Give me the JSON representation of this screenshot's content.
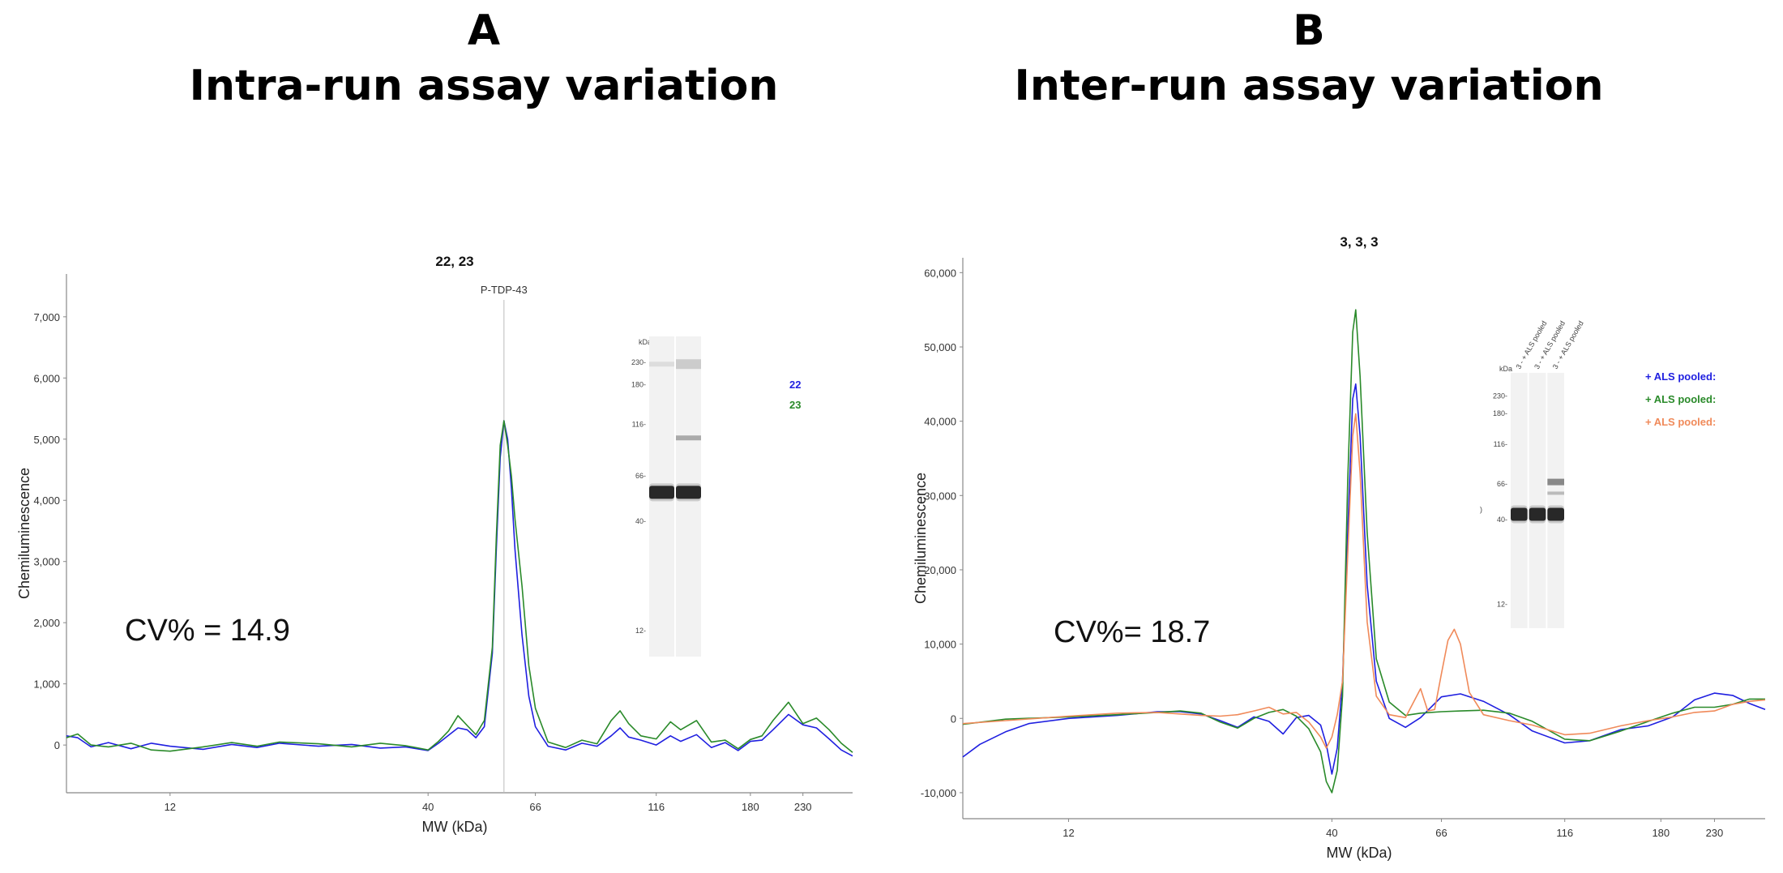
{
  "panels": {
    "a": {
      "letter": "A",
      "title": "Intra-run assay variation"
    },
    "b": {
      "letter": "B",
      "title": "Inter-run assay variation"
    }
  },
  "chart_data": [
    {
      "type": "line",
      "title": "22, 23",
      "xlabel": "MW (kDa)",
      "ylabel": "Chemiluminescence",
      "x_scale": "log",
      "x_ticks": [
        12,
        40,
        66,
        116,
        180,
        230
      ],
      "y_ticks": [
        0,
        1000,
        2000,
        3000,
        4000,
        5000,
        6000,
        7000
      ],
      "y_tick_labels": [
        "0",
        "1,000",
        "2,000",
        "3,000",
        "4,000",
        "5,000",
        "6,000",
        "7,000"
      ],
      "xlim": [
        7.4,
        290
      ],
      "ylim": [
        -780,
        7700
      ],
      "annotation": "P-TDP-43",
      "annotation_x": 57,
      "cv_text": "CV% = 14.9",
      "grid": false,
      "legend_position": "right",
      "series": [
        {
          "name": "22",
          "color": "#1f1fe0",
          "points": [
            [
              7.4,
              150
            ],
            [
              7.8,
              120
            ],
            [
              8.3,
              -30
            ],
            [
              9,
              40
            ],
            [
              10,
              -60
            ],
            [
              11,
              30
            ],
            [
              12,
              -20
            ],
            [
              14,
              -70
            ],
            [
              16,
              10
            ],
            [
              18,
              -40
            ],
            [
              20,
              30
            ],
            [
              24,
              -20
            ],
            [
              28,
              10
            ],
            [
              32,
              -50
            ],
            [
              36,
              -30
            ],
            [
              40,
              -90
            ],
            [
              42,
              30
            ],
            [
              44,
              160
            ],
            [
              46,
              280
            ],
            [
              48,
              250
            ],
            [
              50,
              120
            ],
            [
              52,
              300
            ],
            [
              54,
              1500
            ],
            [
              55,
              3200
            ],
            [
              56,
              4700
            ],
            [
              57,
              5300
            ],
            [
              58,
              5000
            ],
            [
              59,
              4200
            ],
            [
              60,
              3200
            ],
            [
              62,
              1800
            ],
            [
              64,
              800
            ],
            [
              66,
              300
            ],
            [
              70,
              -20
            ],
            [
              76,
              -80
            ],
            [
              82,
              30
            ],
            [
              88,
              -20
            ],
            [
              94,
              150
            ],
            [
              98,
              280
            ],
            [
              102,
              130
            ],
            [
              108,
              80
            ],
            [
              116,
              0
            ],
            [
              124,
              150
            ],
            [
              130,
              60
            ],
            [
              140,
              170
            ],
            [
              150,
              -40
            ],
            [
              160,
              40
            ],
            [
              170,
              -90
            ],
            [
              180,
              60
            ],
            [
              190,
              80
            ],
            [
              200,
              250
            ],
            [
              215,
              500
            ],
            [
              230,
              330
            ],
            [
              245,
              280
            ],
            [
              260,
              100
            ],
            [
              275,
              -80
            ],
            [
              290,
              -180
            ]
          ]
        },
        {
          "name": "23",
          "color": "#2a8a2a",
          "points": [
            [
              7.4,
              120
            ],
            [
              7.8,
              180
            ],
            [
              8.3,
              0
            ],
            [
              9,
              -30
            ],
            [
              10,
              30
            ],
            [
              11,
              -80
            ],
            [
              12,
              -100
            ],
            [
              14,
              -30
            ],
            [
              16,
              40
            ],
            [
              18,
              -20
            ],
            [
              20,
              50
            ],
            [
              24,
              20
            ],
            [
              28,
              -30
            ],
            [
              32,
              30
            ],
            [
              36,
              -10
            ],
            [
              40,
              -80
            ],
            [
              42,
              60
            ],
            [
              44,
              230
            ],
            [
              46,
              480
            ],
            [
              48,
              320
            ],
            [
              50,
              170
            ],
            [
              52,
              400
            ],
            [
              54,
              1600
            ],
            [
              55,
              3400
            ],
            [
              56,
              4900
            ],
            [
              57,
              5300
            ],
            [
              58,
              4900
            ],
            [
              59,
              4400
            ],
            [
              60,
              3700
            ],
            [
              62,
              2600
            ],
            [
              64,
              1300
            ],
            [
              66,
              600
            ],
            [
              70,
              50
            ],
            [
              76,
              -40
            ],
            [
              82,
              80
            ],
            [
              88,
              20
            ],
            [
              94,
              400
            ],
            [
              98,
              560
            ],
            [
              102,
              350
            ],
            [
              108,
              150
            ],
            [
              116,
              100
            ],
            [
              124,
              380
            ],
            [
              130,
              250
            ],
            [
              140,
              400
            ],
            [
              150,
              50
            ],
            [
              160,
              80
            ],
            [
              170,
              -60
            ],
            [
              180,
              90
            ],
            [
              190,
              150
            ],
            [
              200,
              400
            ],
            [
              215,
              700
            ],
            [
              230,
              350
            ],
            [
              245,
              440
            ],
            [
              260,
              250
            ],
            [
              275,
              30
            ],
            [
              290,
              -120
            ]
          ]
        }
      ]
    },
    {
      "type": "line",
      "title": "3, 3, 3",
      "xlabel": "MW (kDa)",
      "ylabel": "Chemiluminescence",
      "x_scale": "log",
      "x_ticks": [
        12,
        40,
        66,
        116,
        180,
        230
      ],
      "y_ticks": [
        -10000,
        0,
        10000,
        20000,
        30000,
        40000,
        50000,
        60000
      ],
      "y_tick_labels": [
        "-10,000",
        "0",
        "10,000",
        "20,000",
        "30,000",
        "40,000",
        "50,000",
        "60,000"
      ],
      "xlim": [
        7.4,
        290
      ],
      "ylim": [
        -13500,
        62000
      ],
      "cv_text": "CV%= 18.7",
      "grid": false,
      "legend_position": "right",
      "series": [
        {
          "name": "+ ALS pooled:",
          "color": "#1f1fe0",
          "points": [
            [
              7.4,
              -5200
            ],
            [
              8,
              -3500
            ],
            [
              9,
              -1800
            ],
            [
              10,
              -700
            ],
            [
              12,
              0
            ],
            [
              15,
              400
            ],
            [
              18,
              900
            ],
            [
              20,
              900
            ],
            [
              22,
              600
            ],
            [
              24,
              -300
            ],
            [
              26,
              -1200
            ],
            [
              28,
              200
            ],
            [
              30,
              -400
            ],
            [
              32,
              -2100
            ],
            [
              34,
              100
            ],
            [
              36,
              400
            ],
            [
              38,
              -900
            ],
            [
              39,
              -3500
            ],
            [
              40,
              -7500
            ],
            [
              41,
              -4000
            ],
            [
              42,
              5000
            ],
            [
              43,
              25000
            ],
            [
              44,
              43000
            ],
            [
              44.6,
              45000
            ],
            [
              45.5,
              38000
            ],
            [
              47,
              18000
            ],
            [
              49,
              5000
            ],
            [
              52,
              0
            ],
            [
              56,
              -1200
            ],
            [
              60,
              100
            ],
            [
              66,
              2900
            ],
            [
              72,
              3300
            ],
            [
              80,
              2300
            ],
            [
              90,
              500
            ],
            [
              100,
              -1700
            ],
            [
              116,
              -3300
            ],
            [
              130,
              -3000
            ],
            [
              150,
              -1500
            ],
            [
              170,
              -1000
            ],
            [
              190,
              200
            ],
            [
              210,
              2500
            ],
            [
              230,
              3400
            ],
            [
              250,
              3100
            ],
            [
              270,
              2000
            ],
            [
              290,
              1200
            ]
          ]
        },
        {
          "name": "+ ALS pooled:",
          "color": "#2a8a2a",
          "points": [
            [
              7.4,
              -800
            ],
            [
              9,
              -100
            ],
            [
              12,
              200
            ],
            [
              15,
              500
            ],
            [
              18,
              800
            ],
            [
              20,
              1000
            ],
            [
              22,
              700
            ],
            [
              24,
              -500
            ],
            [
              26,
              -1300
            ],
            [
              28,
              0
            ],
            [
              30,
              800
            ],
            [
              32,
              1200
            ],
            [
              34,
              300
            ],
            [
              36,
              -1400
            ],
            [
              38,
              -4500
            ],
            [
              39,
              -8500
            ],
            [
              40,
              -10000
            ],
            [
              41,
              -7000
            ],
            [
              42,
              3000
            ],
            [
              43,
              32000
            ],
            [
              44,
              52000
            ],
            [
              44.6,
              55000
            ],
            [
              45.5,
              46000
            ],
            [
              47,
              25000
            ],
            [
              49,
              8000
            ],
            [
              52,
              2200
            ],
            [
              56,
              400
            ],
            [
              60,
              700
            ],
            [
              66,
              900
            ],
            [
              72,
              1000
            ],
            [
              80,
              1100
            ],
            [
              90,
              700
            ],
            [
              100,
              -400
            ],
            [
              116,
              -2800
            ],
            [
              130,
              -3000
            ],
            [
              150,
              -1700
            ],
            [
              170,
              -400
            ],
            [
              190,
              700
            ],
            [
              210,
              1500
            ],
            [
              230,
              1500
            ],
            [
              250,
              1900
            ],
            [
              270,
              2600
            ],
            [
              290,
              2600
            ]
          ]
        },
        {
          "name": "+ ALS pooled:",
          "color": "#f08a5a",
          "points": [
            [
              7.4,
              -700
            ],
            [
              9,
              -300
            ],
            [
              12,
              300
            ],
            [
              15,
              700
            ],
            [
              18,
              800
            ],
            [
              20,
              600
            ],
            [
              22,
              400
            ],
            [
              24,
              300
            ],
            [
              26,
              500
            ],
            [
              28,
              1000
            ],
            [
              30,
              1500
            ],
            [
              32,
              600
            ],
            [
              34,
              800
            ],
            [
              36,
              -500
            ],
            [
              38,
              -2500
            ],
            [
              39,
              -4000
            ],
            [
              40,
              -2500
            ],
            [
              41,
              500
            ],
            [
              42,
              5000
            ],
            [
              43,
              22000
            ],
            [
              44,
              38000
            ],
            [
              44.6,
              41000
            ],
            [
              45.5,
              33000
            ],
            [
              47,
              13000
            ],
            [
              49,
              3000
            ],
            [
              52,
              500
            ],
            [
              56,
              100
            ],
            [
              60,
              4000
            ],
            [
              62,
              1000
            ],
            [
              64,
              1200
            ],
            [
              66,
              6000
            ],
            [
              68,
              10500
            ],
            [
              70,
              12000
            ],
            [
              72,
              10000
            ],
            [
              75,
              3500
            ],
            [
              80,
              500
            ],
            [
              90,
              -300
            ],
            [
              100,
              -900
            ],
            [
              116,
              -2200
            ],
            [
              130,
              -2000
            ],
            [
              150,
              -1000
            ],
            [
              170,
              -300
            ],
            [
              190,
              200
            ],
            [
              210,
              800
            ],
            [
              230,
              1000
            ],
            [
              250,
              1900
            ],
            [
              270,
              2300
            ],
            [
              290,
              2500
            ]
          ]
        }
      ]
    }
  ],
  "gel_a": {
    "unit": "kDa",
    "ladder": [
      [
        "230",
        230
      ],
      [
        "180",
        180
      ],
      [
        "116",
        116
      ],
      [
        "66",
        66
      ],
      [
        "40",
        40
      ],
      [
        "12",
        12
      ]
    ]
  },
  "gel_b": {
    "unit": "kDa",
    "ladder": [
      [
        "230",
        230
      ],
      [
        "180",
        180
      ],
      [
        "116",
        116
      ],
      [
        "66",
        66
      ],
      [
        "40",
        40
      ],
      [
        "12",
        12
      ]
    ],
    "lane_labels": [
      "3 - + ALS pooled",
      "3 - + ALS pooled",
      "3 - + ALS pooled"
    ],
    "side_mark": ")"
  }
}
